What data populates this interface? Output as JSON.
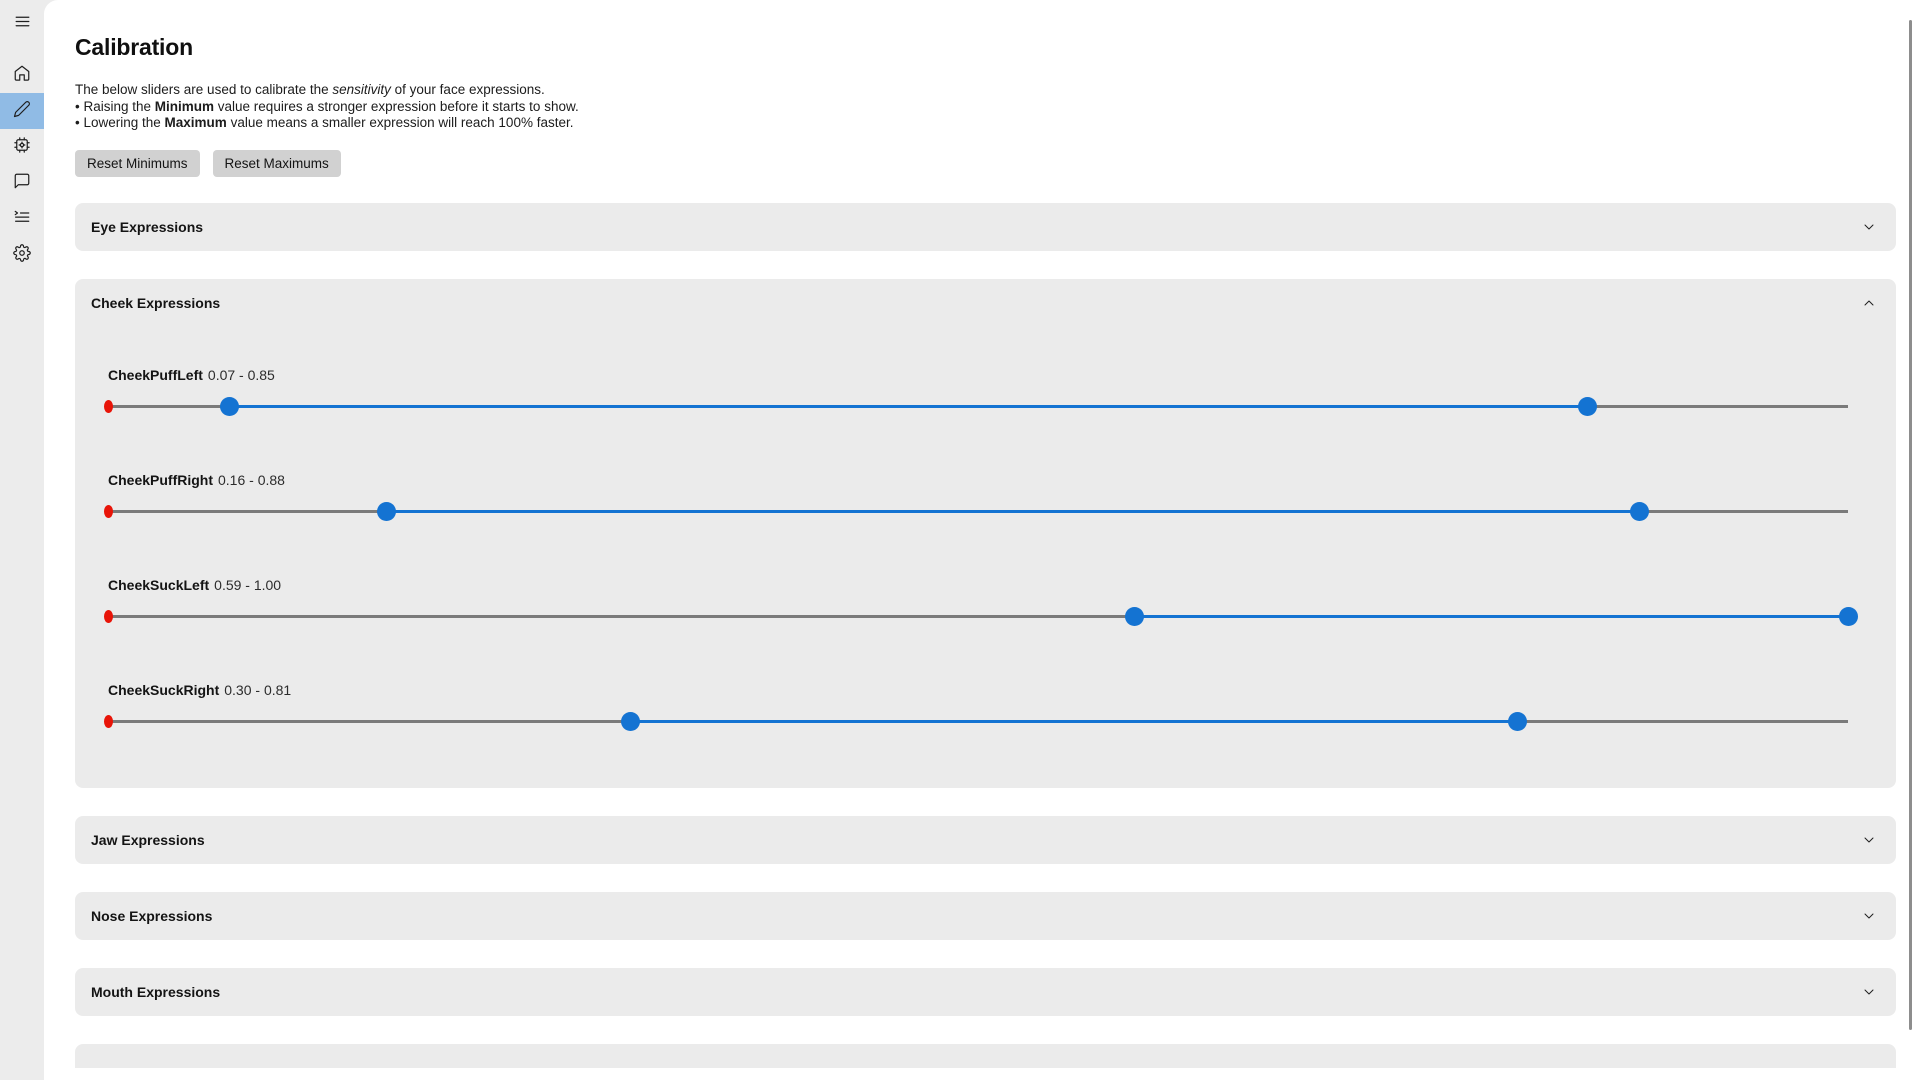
{
  "page": {
    "title": "Calibration"
  },
  "sidebar": {
    "items": [
      {
        "name": "menu"
      },
      {
        "name": "home"
      },
      {
        "name": "edit",
        "active": true
      },
      {
        "name": "chip"
      },
      {
        "name": "chat"
      },
      {
        "name": "list"
      },
      {
        "name": "settings"
      }
    ]
  },
  "intro": {
    "line1_pre": "The below sliders are used to calibrate the ",
    "line1_em": "sensitivity",
    "line1_post": " of your face expressions.",
    "bullet1_pre": "• Raising the ",
    "bullet1_bold": "Minimum",
    "bullet1_post": " value requires a stronger expression before it starts to show.",
    "bullet2_pre": "• Lowering the ",
    "bullet2_bold": "Maximum",
    "bullet2_post": " value means a smaller expression will reach 100% faster."
  },
  "toolbar": {
    "reset_min_label": "Reset Minimums",
    "reset_max_label": "Reset Maximums"
  },
  "sections": [
    {
      "label": "Eye Expressions",
      "expanded": false
    },
    {
      "label": "Cheek Expressions",
      "expanded": true,
      "sliders": [
        {
          "name": "CheekPuffLeft",
          "range": "0.07 - 0.85",
          "min": 0.07,
          "max": 0.85
        },
        {
          "name": "CheekPuffRight",
          "range": "0.16 - 0.88",
          "min": 0.16,
          "max": 0.88
        },
        {
          "name": "CheekSuckLeft",
          "range": "0.59 - 1.00",
          "min": 0.59,
          "max": 1.0
        },
        {
          "name": "CheekSuckRight",
          "range": "0.30 - 0.81",
          "min": 0.3,
          "max": 0.81
        }
      ]
    },
    {
      "label": "Jaw Expressions",
      "expanded": false
    },
    {
      "label": "Nose Expressions",
      "expanded": false
    },
    {
      "label": "Mouth Expressions",
      "expanded": false
    }
  ],
  "colors": {
    "accent_blue": "#1473d2",
    "active_nav_highlight": "#90bbe5",
    "origin_dot_red": "#e81408",
    "track_gray": "#7a7a7a",
    "section_bg": "#ebebeb",
    "button_bg": "#d1d1d1"
  }
}
